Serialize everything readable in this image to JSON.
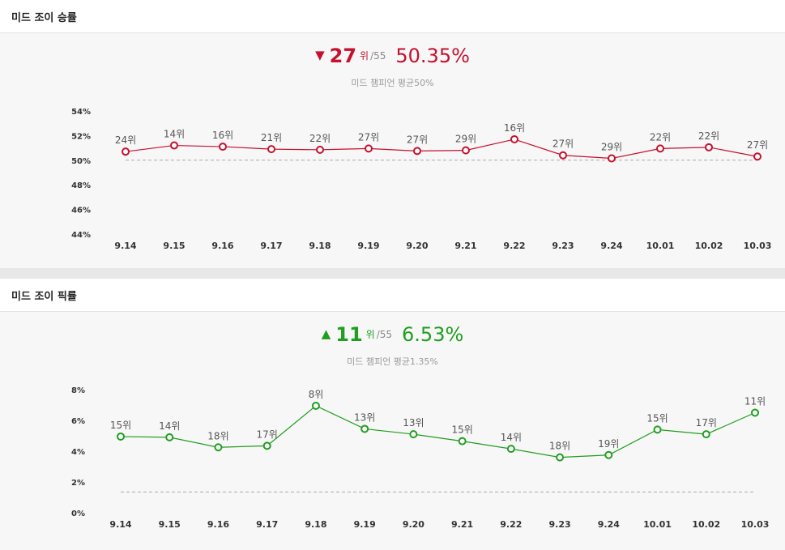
{
  "chart_data": [
    {
      "type": "line",
      "title": "미드 조이 승률",
      "summary": {
        "arrow": "▼",
        "rank": "27",
        "rank_unit": "위",
        "total": "/55",
        "value": "50.35%"
      },
      "average_label": "미드 챔피언 평균50%",
      "average_value": 50,
      "categories": [
        "9.14",
        "9.15",
        "9.16",
        "9.17",
        "9.18",
        "9.19",
        "9.20",
        "9.21",
        "9.22",
        "9.23",
        "9.24",
        "10.01",
        "10.02",
        "10.03"
      ],
      "values": [
        50.7,
        51.2,
        51.1,
        50.9,
        50.85,
        50.95,
        50.75,
        50.8,
        51.7,
        50.4,
        50.15,
        50.95,
        51.05,
        50.3
      ],
      "rank_labels": [
        "24위",
        "14위",
        "16위",
        "21위",
        "22위",
        "27위",
        "27위",
        "29위",
        "16위",
        "27위",
        "29위",
        "22위",
        "22위",
        "27위"
      ],
      "ylim": [
        44,
        54
      ],
      "y_ticks": [
        "44%",
        "46%",
        "48%",
        "50%",
        "52%",
        "54%"
      ],
      "y_tick_values": [
        44,
        46,
        48,
        50,
        52,
        54
      ],
      "color": "#c6102e"
    },
    {
      "type": "line",
      "title": "미드 조이 픽률",
      "summary": {
        "arrow": "▲",
        "rank": "11",
        "rank_unit": "위",
        "total": "/55",
        "value": "6.53%"
      },
      "average_label": "미드 챔피언 평균1.35%",
      "average_value": 1.35,
      "categories": [
        "9.14",
        "9.15",
        "9.16",
        "9.17",
        "9.18",
        "9.19",
        "9.20",
        "9.21",
        "9.22",
        "9.23",
        "9.24",
        "10.01",
        "10.02",
        "10.03"
      ],
      "values": [
        4.95,
        4.9,
        4.25,
        4.35,
        6.95,
        5.45,
        5.1,
        4.65,
        4.15,
        3.6,
        3.75,
        5.4,
        5.1,
        6.5
      ],
      "rank_labels": [
        "15위",
        "14위",
        "18위",
        "17위",
        "8위",
        "13위",
        "13위",
        "15위",
        "14위",
        "18위",
        "19위",
        "15위",
        "17위",
        "11위"
      ],
      "ylim": [
        0,
        8
      ],
      "y_ticks": [
        "0%",
        "2%",
        "4%",
        "6%",
        "8%"
      ],
      "y_tick_values": [
        0,
        2,
        4,
        6,
        8
      ],
      "color": "#1f9e1f"
    }
  ]
}
